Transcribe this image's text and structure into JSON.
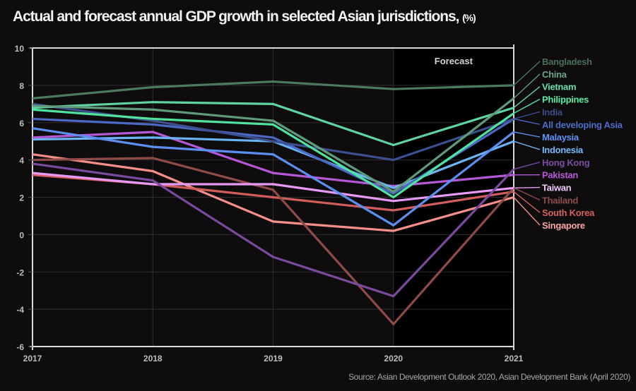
{
  "chart_data": {
    "type": "line",
    "title": "Actual and forecast annual GDP growth in selected Asian jurisdictions,",
    "title_unit": "(%)",
    "xlabel": "",
    "ylabel": "",
    "x": [
      "2017",
      "2018",
      "2019",
      "2020",
      "2021"
    ],
    "ylim": [
      -6,
      10
    ],
    "yticks": [
      10,
      8,
      6,
      4,
      2,
      0,
      -2,
      -4,
      -6
    ],
    "grid": true,
    "forecast_label": "Forecast",
    "forecast_from": "2020",
    "legend_placement": "right",
    "series": [
      {
        "name": "Bangladesh",
        "color": "#4b7a5e",
        "values": [
          7.3,
          7.9,
          8.2,
          7.8,
          8.0
        ]
      },
      {
        "name": "China",
        "color": "#5f9a7b",
        "values": [
          6.9,
          6.7,
          6.1,
          2.3,
          7.3
        ]
      },
      {
        "name": "Vietnam",
        "color": "#5fd3a0",
        "values": [
          6.8,
          7.1,
          7.0,
          4.8,
          6.8
        ]
      },
      {
        "name": "Philippines",
        "color": "#4fe39e",
        "values": [
          6.7,
          6.2,
          5.9,
          2.0,
          6.5
        ]
      },
      {
        "name": "India",
        "color": "#3d4f8e",
        "values": [
          7.0,
          6.1,
          5.0,
          4.0,
          6.2
        ]
      },
      {
        "name": "All developing Asia",
        "color": "#4b68c2",
        "values": [
          6.2,
          5.9,
          5.2,
          2.2,
          6.2
        ]
      },
      {
        "name": "Malaysia",
        "color": "#5c8ef0",
        "values": [
          5.7,
          4.7,
          4.3,
          0.5,
          5.5
        ]
      },
      {
        "name": "Indonesia",
        "color": "#6bb3f2",
        "values": [
          5.1,
          5.2,
          5.0,
          2.5,
          5.0
        ]
      },
      {
        "name": "Hong Kong",
        "color": "#7a4a9e",
        "values": [
          3.8,
          2.9,
          -1.2,
          -3.3,
          3.5
        ]
      },
      {
        "name": "Pakistan",
        "color": "#b558d6",
        "values": [
          5.2,
          5.5,
          3.3,
          2.6,
          3.2
        ]
      },
      {
        "name": "Taiwan",
        "color": "#e79af5",
        "values": [
          3.3,
          2.7,
          2.7,
          1.8,
          2.5
        ]
      },
      {
        "name": "Thailand",
        "color": "#8f4b47",
        "values": [
          4.0,
          4.1,
          2.4,
          -4.8,
          2.5
        ]
      },
      {
        "name": "South Korea",
        "color": "#d15e5a",
        "values": [
          3.2,
          2.7,
          2.0,
          1.3,
          2.3
        ]
      },
      {
        "name": "Singapore",
        "color": "#f58f8a",
        "values": [
          4.3,
          3.4,
          0.7,
          0.2,
          2.0
        ]
      }
    ],
    "legend_label_colors": {
      "Bangladesh": "#4a6d57",
      "China": "#6fa488",
      "Vietnam": "#66e0a8",
      "Philippines": "#58eca5",
      "India": "#3d4e87",
      "All developing Asia": "#4e6cc8",
      "Malaysia": "#5f92f2",
      "Indonesia": "#73b8f5",
      "Hong Kong": "#7d4d9f",
      "Pakistan": "#b65ad7",
      "Taiwan": "#f0c8fb",
      "Thailand": "#8e4e4a",
      "South Korea": "#d4625e",
      "Singapore": "#f6a7a3"
    },
    "source": "Source: Asian Development Outlook 2020, Asian Development Bank (April 2020)"
  }
}
